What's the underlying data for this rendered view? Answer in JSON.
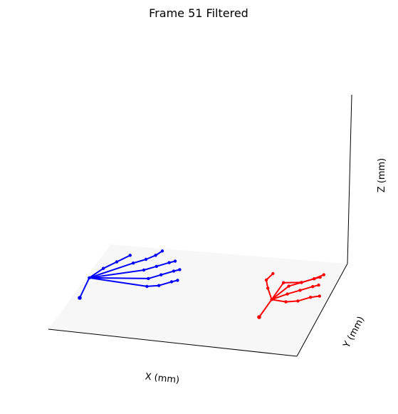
{
  "chart_data": {
    "type": "3d-line",
    "title": "Frame 51 Filtered",
    "xlabel": "X (mm)",
    "ylabel": "Y (mm)",
    "zlabel": "Z (mm)",
    "ticks_visible": false,
    "pane_color": "#f7f7f7",
    "series": [
      {
        "color": "#0000ff",
        "joints": [
          [
            0,
            0,
            0
          ],
          [
            2,
            5,
            3
          ],
          [
            6,
            8,
            4
          ],
          [
            10,
            10,
            5
          ],
          [
            14,
            12,
            6
          ],
          [
            16,
            8,
            8
          ],
          [
            20,
            9,
            9
          ],
          [
            23,
            10,
            10
          ],
          [
            25,
            11,
            11
          ],
          [
            20,
            6,
            8
          ],
          [
            24,
            7,
            9
          ],
          [
            28,
            8,
            10
          ],
          [
            30,
            8,
            11
          ],
          [
            22,
            4,
            7
          ],
          [
            26,
            5,
            8
          ],
          [
            30,
            6,
            9
          ],
          [
            32,
            6,
            10
          ],
          [
            22,
            2,
            6
          ],
          [
            26,
            2,
            7
          ],
          [
            30,
            3,
            8
          ],
          [
            32,
            3,
            9
          ]
        ],
        "bones": [
          [
            0,
            1
          ],
          [
            1,
            2
          ],
          [
            2,
            3
          ],
          [
            3,
            4
          ],
          [
            1,
            5
          ],
          [
            5,
            6
          ],
          [
            6,
            7
          ],
          [
            7,
            8
          ],
          [
            1,
            9
          ],
          [
            9,
            10
          ],
          [
            10,
            11
          ],
          [
            11,
            12
          ],
          [
            1,
            13
          ],
          [
            13,
            14
          ],
          [
            14,
            15
          ],
          [
            15,
            16
          ],
          [
            1,
            17
          ],
          [
            17,
            18
          ],
          [
            18,
            19
          ],
          [
            19,
            20
          ]
        ]
      },
      {
        "color": "#ff0000",
        "joints": [
          [
            60,
            0,
            0
          ],
          [
            63,
            5,
            2
          ],
          [
            61,
            8,
            3
          ],
          [
            60,
            10,
            4
          ],
          [
            62,
            11,
            6
          ],
          [
            66,
            9,
            5
          ],
          [
            72,
            9,
            6
          ],
          [
            76,
            10,
            7
          ],
          [
            79,
            11,
            8
          ],
          [
            68,
            8,
            5
          ],
          [
            72,
            9,
            6
          ],
          [
            76,
            10,
            7
          ],
          [
            78,
            10,
            8
          ],
          [
            68,
            6,
            4
          ],
          [
            72,
            7,
            5
          ],
          [
            76,
            8,
            6
          ],
          [
            78,
            8,
            7
          ],
          [
            68,
            4,
            3
          ],
          [
            72,
            4,
            4
          ],
          [
            76,
            5,
            5
          ],
          [
            79,
            5,
            6
          ]
        ],
        "bones": [
          [
            0,
            1
          ],
          [
            1,
            2
          ],
          [
            2,
            3
          ],
          [
            3,
            4
          ],
          [
            1,
            5
          ],
          [
            5,
            6
          ],
          [
            6,
            7
          ],
          [
            7,
            8
          ],
          [
            1,
            9
          ],
          [
            9,
            10
          ],
          [
            10,
            11
          ],
          [
            11,
            12
          ],
          [
            1,
            13
          ],
          [
            13,
            14
          ],
          [
            14,
            15
          ],
          [
            15,
            16
          ],
          [
            1,
            17
          ],
          [
            17,
            18
          ],
          [
            18,
            19
          ],
          [
            19,
            20
          ]
        ]
      }
    ]
  }
}
